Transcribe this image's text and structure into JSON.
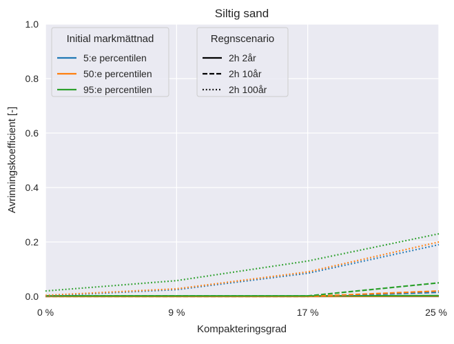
{
  "chart_data": {
    "type": "line",
    "title": "Siltig sand",
    "xlabel": "Kompakteringsgrad",
    "ylabel": "Avrinningskoefficient [-]",
    "x": [
      "0 %",
      "9 %",
      "17 %",
      "25 %"
    ],
    "ylim": [
      0,
      1.0
    ],
    "yticks": [
      "0.0",
      "0.2",
      "0.4",
      "0.6",
      "0.8",
      "1.0"
    ],
    "grid": true,
    "background": "#eaeaf2",
    "legends": [
      {
        "title": "Initial markmättnad",
        "placement": "top-left",
        "entries": [
          {
            "label": "5:e percentilen",
            "color": "#1f77b4"
          },
          {
            "label": "50:e percentilen",
            "color": "#ff7f0e"
          },
          {
            "label": "95:e percentilen",
            "color": "#2ca02c"
          }
        ]
      },
      {
        "title": "Regnscenario",
        "placement": "top-center",
        "entries": [
          {
            "label": "2h 2år",
            "style": "solid"
          },
          {
            "label": "2h 10år",
            "style": "dashed"
          },
          {
            "label": "2h 100år",
            "style": "dotted"
          }
        ]
      }
    ],
    "series": [
      {
        "saturation": "5:e percentilen",
        "scenario": "2h 2år",
        "color": "#1f77b4",
        "style": "solid",
        "values": [
          0,
          0,
          0,
          0
        ]
      },
      {
        "saturation": "50:e percentilen",
        "scenario": "2h 2år",
        "color": "#ff7f0e",
        "style": "solid",
        "values": [
          0,
          0,
          0,
          0.001
        ]
      },
      {
        "saturation": "95:e percentilen",
        "scenario": "2h 2år",
        "color": "#2ca02c",
        "style": "solid",
        "values": [
          0.002,
          0.002,
          0.002,
          0.003
        ]
      },
      {
        "saturation": "5:e percentilen",
        "scenario": "2h 10år",
        "color": "#1f77b4",
        "style": "dashed",
        "values": [
          0,
          0,
          0,
          0.015
        ]
      },
      {
        "saturation": "50:e percentilen",
        "scenario": "2h 10år",
        "color": "#ff7f0e",
        "style": "dashed",
        "values": [
          0,
          0,
          0,
          0.02
        ]
      },
      {
        "saturation": "95:e percentilen",
        "scenario": "2h 10år",
        "color": "#2ca02c",
        "style": "dashed",
        "values": [
          0.002,
          0.002,
          0.002,
          0.05
        ]
      },
      {
        "saturation": "5:e percentilen",
        "scenario": "2h 100år",
        "color": "#1f77b4",
        "style": "dotted",
        "values": [
          0.002,
          0.025,
          0.085,
          0.19
        ]
      },
      {
        "saturation": "50:e percentilen",
        "scenario": "2h 100år",
        "color": "#ff7f0e",
        "style": "dotted",
        "values": [
          0.004,
          0.028,
          0.09,
          0.2
        ]
      },
      {
        "saturation": "95:e percentilen",
        "scenario": "2h 100år",
        "color": "#2ca02c",
        "style": "dotted",
        "values": [
          0.02,
          0.058,
          0.13,
          0.23
        ]
      }
    ]
  }
}
